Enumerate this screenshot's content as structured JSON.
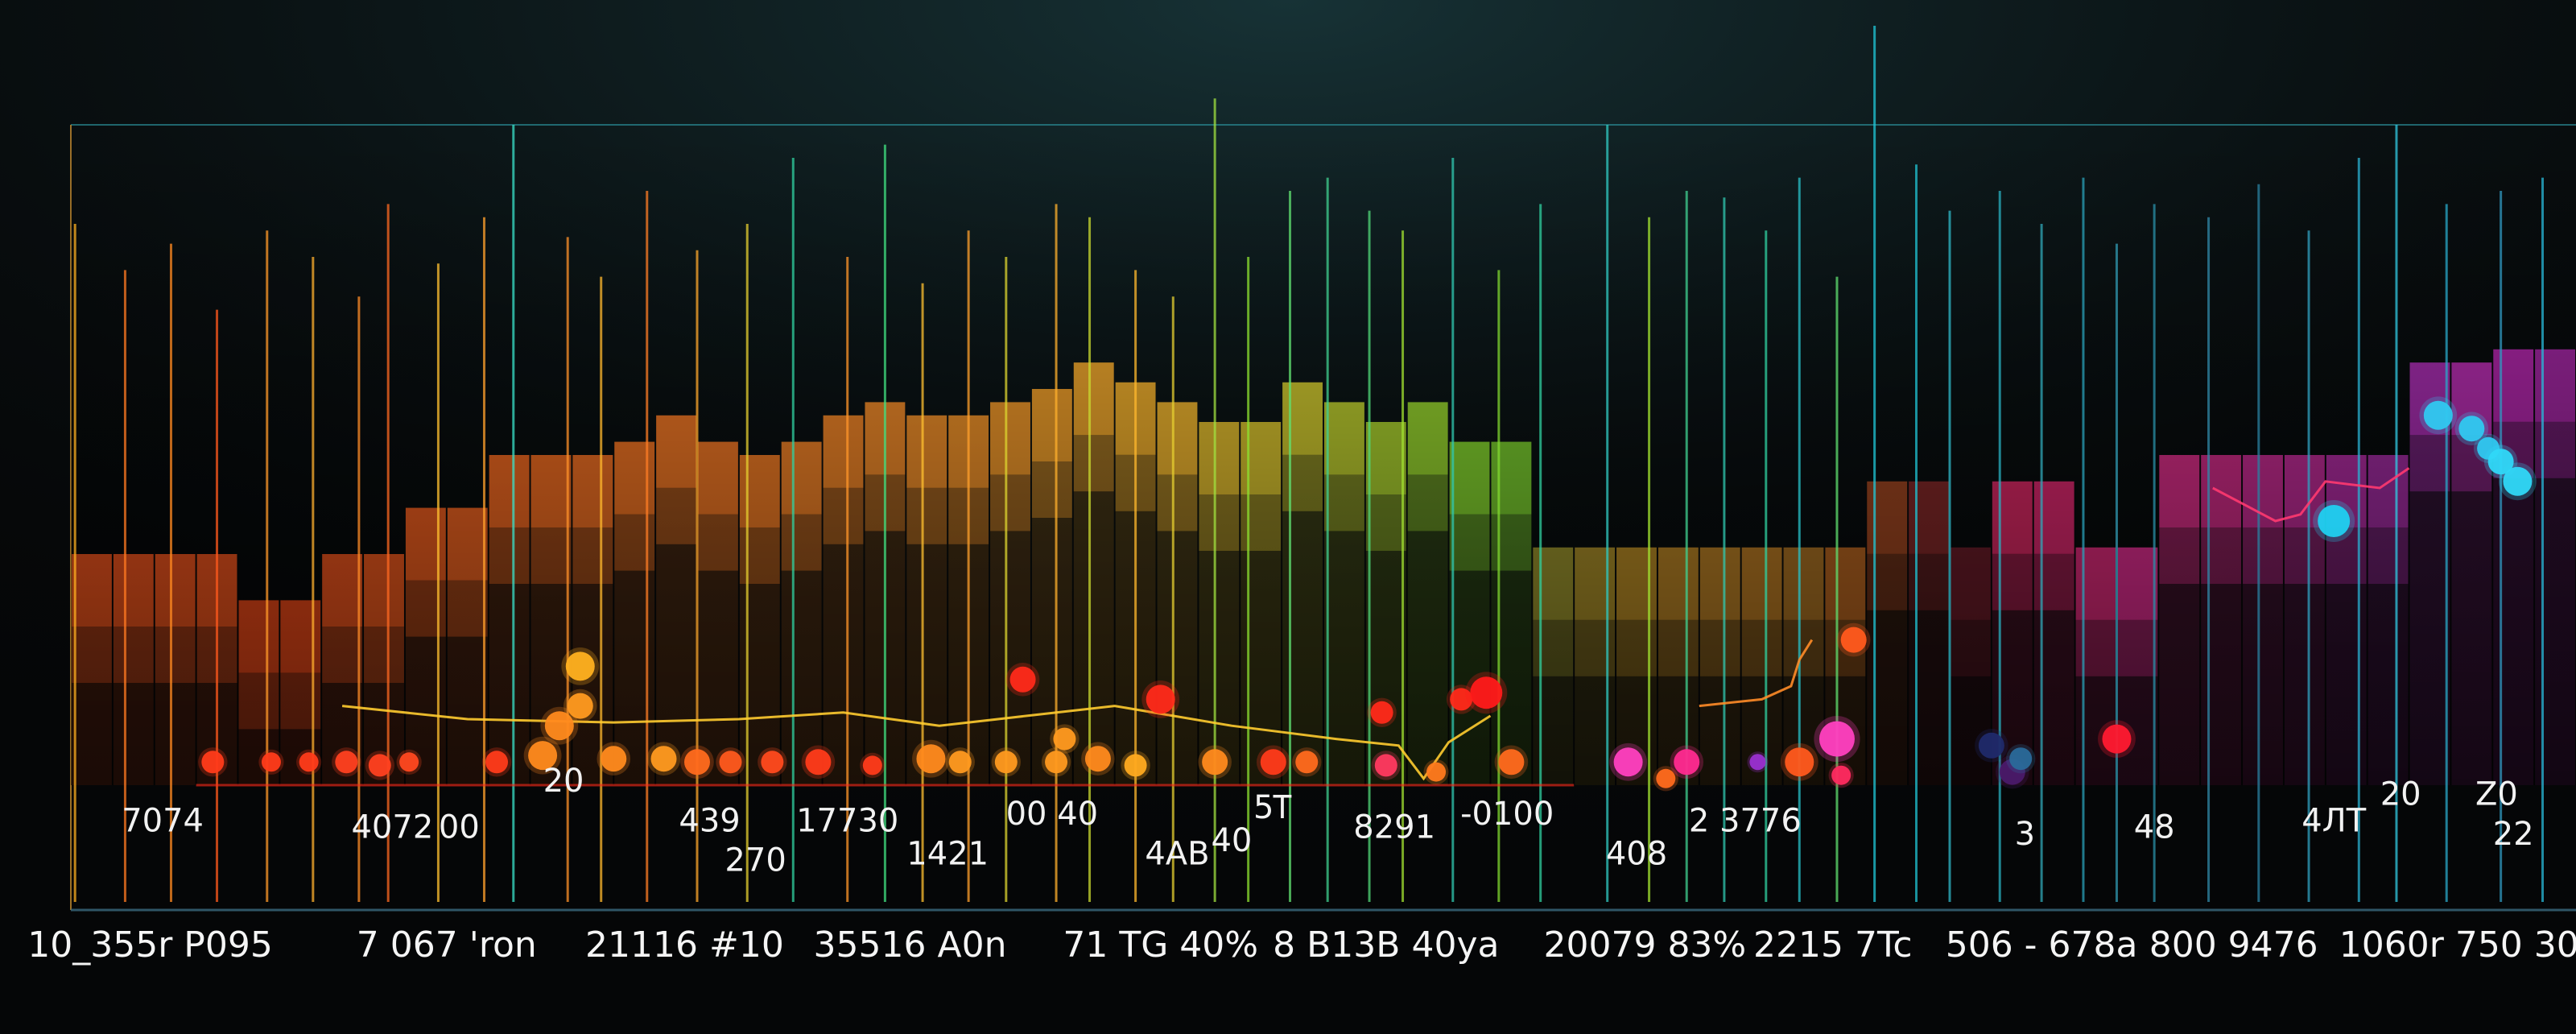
{
  "chart_data": {
    "type": "bar",
    "title": "",
    "xlabel": "",
    "ylabel": "",
    "ylim": [
      0,
      100
    ],
    "grid": true,
    "legend": "none",
    "bars": [
      {
        "h": 35,
        "color": "#ff5a1e"
      },
      {
        "h": 35,
        "color": "#ff5a1e"
      },
      {
        "h": 35,
        "color": "#ff5a1e"
      },
      {
        "h": 35,
        "color": "#ff5a1e"
      },
      {
        "h": 28,
        "color": "#ff4f1a"
      },
      {
        "h": 28,
        "color": "#ff4f1a"
      },
      {
        "h": 35,
        "color": "#ff5a1e"
      },
      {
        "h": 35,
        "color": "#ff5f1f"
      },
      {
        "h": 42,
        "color": "#ff6420"
      },
      {
        "h": 42,
        "color": "#ff6a22"
      },
      {
        "h": 50,
        "color": "#ff6e22"
      },
      {
        "h": 50,
        "color": "#ff7222"
      },
      {
        "h": 50,
        "color": "#ff7624"
      },
      {
        "h": 52,
        "color": "#ff7a24"
      },
      {
        "h": 56,
        "color": "#ff7e26"
      },
      {
        "h": 52,
        "color": "#ff7e26"
      },
      {
        "h": 50,
        "color": "#ff8226"
      },
      {
        "h": 52,
        "color": "#ff8828"
      },
      {
        "h": 56,
        "color": "#ff8c28"
      },
      {
        "h": 58,
        "color": "#ff922a"
      },
      {
        "h": 56,
        "color": "#ff962a"
      },
      {
        "h": 56,
        "color": "#ff9a2a"
      },
      {
        "h": 58,
        "color": "#ffa02c"
      },
      {
        "h": 60,
        "color": "#ffa82c"
      },
      {
        "h": 64,
        "color": "#ffb02e"
      },
      {
        "h": 61,
        "color": "#ffb82e"
      },
      {
        "h": 58,
        "color": "#ffc030"
      },
      {
        "h": 55,
        "color": "#f0c830"
      },
      {
        "h": 55,
        "color": "#e6cf30"
      },
      {
        "h": 61,
        "color": "#dcd430"
      },
      {
        "h": 58,
        "color": "#c8d830"
      },
      {
        "h": 55,
        "color": "#b4dc30"
      },
      {
        "h": 58,
        "color": "#a0e030"
      },
      {
        "h": 52,
        "color": "#8ce030"
      },
      {
        "h": 52,
        "color": "#80d830"
      },
      {
        "h": 36,
        "color": "#a8a030"
      },
      {
        "h": 36,
        "color": "#b89a2c"
      },
      {
        "h": 36,
        "color": "#c89628"
      },
      {
        "h": 36,
        "color": "#c88e28"
      },
      {
        "h": 36,
        "color": "#c88a28"
      },
      {
        "h": 36,
        "color": "#c88426"
      },
      {
        "h": 36,
        "color": "#b87a26"
      },
      {
        "h": 36,
        "color": "#c46c22"
      },
      {
        "h": 46,
        "color": "#a84a22"
      },
      {
        "h": 46,
        "color": "#8a2a2a"
      },
      {
        "h": 36,
        "color": "#701d2a"
      },
      {
        "h": 46,
        "color": "#e82a6a"
      },
      {
        "h": 46,
        "color": "#ea2a74"
      },
      {
        "h": 36,
        "color": "#ee2e84"
      },
      {
        "h": 36,
        "color": "#f0309a"
      },
      {
        "h": 50,
        "color": "#e4308e"
      },
      {
        "h": 50,
        "color": "#da2e8e"
      },
      {
        "h": 50,
        "color": "#d02e98"
      },
      {
        "h": 50,
        "color": "#c82e9e"
      },
      {
        "h": 50,
        "color": "#b82ea8"
      },
      {
        "h": 50,
        "color": "#a82ea8"
      },
      {
        "h": 64,
        "color": "#b030b8"
      },
      {
        "h": 64,
        "color": "#c030b8"
      },
      {
        "h": 66,
        "color": "#b828b0"
      },
      {
        "h": 66,
        "color": "#a828a8"
      }
    ],
    "vlines": [
      {
        "x": 0.1,
        "top": 85,
        "color": "#ffb020"
      },
      {
        "x": 1.3,
        "top": 78,
        "color": "#ff7a22"
      },
      {
        "x": 2.4,
        "top": 82,
        "color": "#ff8a22"
      },
      {
        "x": 3.5,
        "top": 72,
        "color": "#ff5a1e"
      },
      {
        "x": 4.7,
        "top": 84,
        "color": "#ff9a2a"
      },
      {
        "x": 5.8,
        "top": 80,
        "color": "#ffb02e"
      },
      {
        "x": 6.9,
        "top": 74,
        "color": "#ff8c28"
      },
      {
        "x": 7.6,
        "top": 88,
        "color": "#ff6a22"
      },
      {
        "x": 8.8,
        "top": 79,
        "color": "#ffc030"
      },
      {
        "x": 9.9,
        "top": 86,
        "color": "#ffa02c"
      },
      {
        "x": 10.6,
        "top": 100,
        "color": "#3ae0c8"
      },
      {
        "x": 11.9,
        "top": 83,
        "color": "#ff922a"
      },
      {
        "x": 12.7,
        "top": 77,
        "color": "#ffb82e"
      },
      {
        "x": 13.8,
        "top": 90,
        "color": "#ff7e26"
      },
      {
        "x": 15.0,
        "top": 81,
        "color": "#ffa82c"
      },
      {
        "x": 16.2,
        "top": 85,
        "color": "#e6cf30"
      },
      {
        "x": 17.3,
        "top": 95,
        "color": "#30d0a0"
      },
      {
        "x": 18.6,
        "top": 80,
        "color": "#ff962a"
      },
      {
        "x": 19.5,
        "top": 97,
        "color": "#40e080"
      },
      {
        "x": 20.4,
        "top": 76,
        "color": "#ffc030"
      },
      {
        "x": 21.5,
        "top": 84,
        "color": "#ffa02c"
      },
      {
        "x": 22.4,
        "top": 80,
        "color": "#dcd430"
      },
      {
        "x": 23.6,
        "top": 88,
        "color": "#ffb02e"
      },
      {
        "x": 24.4,
        "top": 86,
        "color": "#c8d830"
      },
      {
        "x": 25.5,
        "top": 78,
        "color": "#ffb82e"
      },
      {
        "x": 26.4,
        "top": 74,
        "color": "#e6cf30"
      },
      {
        "x": 27.4,
        "top": 104,
        "color": "#a0e040"
      },
      {
        "x": 28.2,
        "top": 80,
        "color": "#8ce030"
      },
      {
        "x": 29.2,
        "top": 90,
        "color": "#60e070"
      },
      {
        "x": 30.1,
        "top": 92,
        "color": "#40d090"
      },
      {
        "x": 31.1,
        "top": 87,
        "color": "#50d878"
      },
      {
        "x": 31.9,
        "top": 84,
        "color": "#a0e030"
      },
      {
        "x": 33.1,
        "top": 95,
        "color": "#30c8b0"
      },
      {
        "x": 34.2,
        "top": 78,
        "color": "#80d830"
      },
      {
        "x": 35.2,
        "top": 88,
        "color": "#30d0a0"
      },
      {
        "x": 36.8,
        "top": 100,
        "color": "#30c8c0"
      },
      {
        "x": 37.8,
        "top": 86,
        "color": "#a0e030"
      },
      {
        "x": 38.7,
        "top": 90,
        "color": "#40d090"
      },
      {
        "x": 39.6,
        "top": 89,
        "color": "#30c8b0"
      },
      {
        "x": 40.6,
        "top": 84,
        "color": "#30d0a0"
      },
      {
        "x": 41.4,
        "top": 92,
        "color": "#28c0c8"
      },
      {
        "x": 42.3,
        "top": 77,
        "color": "#60e070"
      },
      {
        "x": 43.2,
        "top": 115,
        "color": "#20c8d8"
      },
      {
        "x": 44.2,
        "top": 94,
        "color": "#20c0d0"
      },
      {
        "x": 45.0,
        "top": 87,
        "color": "#30b8c8"
      },
      {
        "x": 46.2,
        "top": 90,
        "color": "#2ab0c0"
      },
      {
        "x": 47.2,
        "top": 85,
        "color": "#30a8b8"
      },
      {
        "x": 48.2,
        "top": 92,
        "color": "#2aa0b8"
      },
      {
        "x": 49.0,
        "top": 82,
        "color": "#3098b0"
      },
      {
        "x": 49.9,
        "top": 88,
        "color": "#2a90a8"
      },
      {
        "x": 51.2,
        "top": 86,
        "color": "#3088a8"
      },
      {
        "x": 52.4,
        "top": 91,
        "color": "#2a80a0"
      },
      {
        "x": 53.6,
        "top": 84,
        "color": "#30a0c0"
      },
      {
        "x": 54.8,
        "top": 95,
        "color": "#2ab0d0"
      },
      {
        "x": 55.7,
        "top": 100,
        "color": "#30c8e0"
      },
      {
        "x": 56.9,
        "top": 88,
        "color": "#2aa8c8"
      },
      {
        "x": 58.2,
        "top": 90,
        "color": "#3098c0"
      },
      {
        "x": 59.2,
        "top": 92,
        "color": "#28b8d8"
      }
    ],
    "line_series": [
      {
        "color": "#ffcc30",
        "points": [
          [
            6.5,
            12
          ],
          [
            9.5,
            10
          ],
          [
            13.0,
            9.5
          ],
          [
            16.0,
            10
          ],
          [
            18.5,
            11
          ],
          [
            20.8,
            9
          ],
          [
            25.0,
            12
          ],
          [
            27.8,
            9
          ],
          [
            30.3,
            7
          ],
          [
            31.8,
            6
          ],
          [
            32.4,
            1
          ],
          [
            33.0,
            6.5
          ],
          [
            34.0,
            10.5
          ]
        ]
      },
      {
        "color": "#ff8c28",
        "points": [
          [
            39.0,
            12
          ],
          [
            40.5,
            13
          ],
          [
            41.2,
            15
          ],
          [
            41.4,
            19
          ],
          [
            41.7,
            22
          ]
        ]
      },
      {
        "color": "#ff3a70",
        "points": [
          [
            51.3,
            45
          ],
          [
            52.8,
            40
          ],
          [
            53.4,
            41
          ],
          [
            54.0,
            46
          ],
          [
            55.3,
            45
          ],
          [
            56.0,
            48
          ]
        ]
      }
    ],
    "dots": [
      {
        "x": 3.4,
        "y": 3.5,
        "r": 7,
        "color": "#ff3b1a"
      },
      {
        "x": 4.8,
        "y": 3.5,
        "r": 6,
        "color": "#ff3b1a"
      },
      {
        "x": 5.7,
        "y": 3.5,
        "r": 6,
        "color": "#ff3b1a"
      },
      {
        "x": 6.6,
        "y": 3.5,
        "r": 7,
        "color": "#ff4020"
      },
      {
        "x": 7.4,
        "y": 3,
        "r": 7,
        "color": "#ff4020"
      },
      {
        "x": 8.1,
        "y": 3.5,
        "r": 6,
        "color": "#ff4820"
      },
      {
        "x": 10.2,
        "y": 3.5,
        "r": 7,
        "color": "#ff3b1a"
      },
      {
        "x": 11.3,
        "y": 4.5,
        "r": 9,
        "color": "#ff8a1e"
      },
      {
        "x": 11.7,
        "y": 9,
        "r": 9,
        "color": "#ff8a1e"
      },
      {
        "x": 12.2,
        "y": 12,
        "r": 8,
        "color": "#ff9a20"
      },
      {
        "x": 12.2,
        "y": 18,
        "r": 9,
        "color": "#ffb020"
      },
      {
        "x": 13.0,
        "y": 4,
        "r": 8,
        "color": "#ff8a1e"
      },
      {
        "x": 14.2,
        "y": 4,
        "r": 8,
        "color": "#ff9a20"
      },
      {
        "x": 15.0,
        "y": 3.5,
        "r": 8,
        "color": "#ff6a1e"
      },
      {
        "x": 15.8,
        "y": 3.5,
        "r": 7,
        "color": "#ff5a1e"
      },
      {
        "x": 16.8,
        "y": 3.5,
        "r": 7,
        "color": "#ff4a1e"
      },
      {
        "x": 17.9,
        "y": 3.5,
        "r": 8,
        "color": "#ff3b1a"
      },
      {
        "x": 19.2,
        "y": 3,
        "r": 6,
        "color": "#ff3b1a"
      },
      {
        "x": 20.6,
        "y": 4,
        "r": 9,
        "color": "#ff8a1e"
      },
      {
        "x": 21.3,
        "y": 3.5,
        "r": 7,
        "color": "#ff9a20"
      },
      {
        "x": 22.4,
        "y": 3.5,
        "r": 7,
        "color": "#ff9a20"
      },
      {
        "x": 22.8,
        "y": 16,
        "r": 8,
        "color": "#ff2a1a"
      },
      {
        "x": 23.6,
        "y": 3.5,
        "r": 7,
        "color": "#ff9a20"
      },
      {
        "x": 23.8,
        "y": 7,
        "r": 7,
        "color": "#ff9a20"
      },
      {
        "x": 24.6,
        "y": 4,
        "r": 8,
        "color": "#ff8a1e"
      },
      {
        "x": 25.5,
        "y": 3,
        "r": 7,
        "color": "#ffaa20"
      },
      {
        "x": 26.1,
        "y": 13,
        "r": 9,
        "color": "#ff2a1a"
      },
      {
        "x": 27.4,
        "y": 3.5,
        "r": 8,
        "color": "#ff8a1e"
      },
      {
        "x": 28.8,
        "y": 3.5,
        "r": 8,
        "color": "#ff3b1a"
      },
      {
        "x": 29.6,
        "y": 3.5,
        "r": 7,
        "color": "#ff6a1e"
      },
      {
        "x": 31.5,
        "y": 3,
        "r": 7,
        "color": "#ff3a60"
      },
      {
        "x": 31.4,
        "y": 11,
        "r": 7,
        "color": "#ff2a1a"
      },
      {
        "x": 32.7,
        "y": 2,
        "r": 6,
        "color": "#ff7a1e"
      },
      {
        "x": 33.3,
        "y": 13,
        "r": 7,
        "color": "#ff2a1a"
      },
      {
        "x": 33.9,
        "y": 14,
        "r": 10,
        "color": "#ff1a1a"
      },
      {
        "x": 34.5,
        "y": 3.5,
        "r": 8,
        "color": "#ff6a1e"
      },
      {
        "x": 37.3,
        "y": 3.5,
        "r": 9,
        "color": "#ff40c0"
      },
      {
        "x": 38.2,
        "y": 1,
        "r": 6,
        "color": "#ff6a1e"
      },
      {
        "x": 38.7,
        "y": 3.5,
        "r": 8,
        "color": "#ff2a90"
      },
      {
        "x": 40.4,
        "y": 3.5,
        "r": 5,
        "color": "#9a30d0"
      },
      {
        "x": 41.4,
        "y": 3.5,
        "r": 9,
        "color": "#ff5a1e"
      },
      {
        "x": 42.3,
        "y": 7,
        "r": 11,
        "color": "#ff40c0"
      },
      {
        "x": 42.4,
        "y": 1.5,
        "r": 6,
        "color": "#ff2a60"
      },
      {
        "x": 42.7,
        "y": 22,
        "r": 8,
        "color": "#ff5a1e"
      },
      {
        "x": 46.0,
        "y": 6,
        "r": 8,
        "color": "#202a6a"
      },
      {
        "x": 46.5,
        "y": 2,
        "r": 8,
        "color": "#4a1a6a"
      },
      {
        "x": 46.7,
        "y": 4,
        "r": 7,
        "color": "#2a6a9a"
      },
      {
        "x": 49.0,
        "y": 7,
        "r": 9,
        "color": "#ff1a30"
      },
      {
        "x": 54.2,
        "y": 40,
        "r": 10,
        "color": "#20d0f0"
      },
      {
        "x": 56.7,
        "y": 56,
        "r": 9,
        "color": "#30c8f0"
      },
      {
        "x": 57.5,
        "y": 54,
        "r": 8,
        "color": "#30c8f0"
      },
      {
        "x": 57.9,
        "y": 51,
        "r": 7,
        "color": "#30c8f0"
      },
      {
        "x": 58.2,
        "y": 49,
        "r": 8,
        "color": "#30d8f8"
      },
      {
        "x": 58.6,
        "y": 46,
        "r": 9,
        "color": "#30d8f8"
      }
    ],
    "inner_labels": [
      {
        "text": "7074",
        "x": 2.2,
        "y": -7
      },
      {
        "text": "20",
        "x": 11.8,
        "y": -1
      },
      {
        "text": "4072",
        "x": 7.7,
        "y": -8
      },
      {
        "text": "00",
        "x": 9.3,
        "y": -8
      },
      {
        "text": "439",
        "x": 15.3,
        "y": -7
      },
      {
        "text": "17730",
        "x": 18.6,
        "y": -7
      },
      {
        "text": "270",
        "x": 16.4,
        "y": -13
      },
      {
        "text": "00 40",
        "x": 23.5,
        "y": -6
      },
      {
        "text": "1421",
        "x": 21.0,
        "y": -12
      },
      {
        "text": "5Ꭲ",
        "x": 28.8,
        "y": -5
      },
      {
        "text": "4AB",
        "x": 26.5,
        "y": -12
      },
      {
        "text": "40",
        "x": 27.8,
        "y": -10
      },
      {
        "text": "8291",
        "x": 31.7,
        "y": -8
      },
      {
        "text": "-0100",
        "x": 34.4,
        "y": -6
      },
      {
        "text": "2 3776",
        "x": 40.1,
        "y": -7
      },
      {
        "text": "408",
        "x": 37.5,
        "y": -12
      },
      {
        "text": "3",
        "x": 46.8,
        "y": -9
      },
      {
        "text": "48",
        "x": 49.9,
        "y": -8
      },
      {
        "text": "4ЛТ",
        "x": 54.2,
        "y": -7
      },
      {
        "text": "20",
        "x": 55.8,
        "y": -3
      },
      {
        "text": "Z0",
        "x": 58.1,
        "y": -3
      },
      {
        "text": "22",
        "x": 58.5,
        "y": -9
      }
    ],
    "bottom_labels": [
      {
        "text": "10_355r P095",
        "x": 1.9
      },
      {
        "text": "7 067 'ron",
        "x": 9.0
      },
      {
        "text": "21116 #10",
        "x": 14.7
      },
      {
        "text": "35516 A0n",
        "x": 20.1
      },
      {
        "text": "71 TG 40%",
        "x": 26.1
      },
      {
        "text": "8 B13B 40ya",
        "x": 31.5
      },
      {
        "text": "20079 83%",
        "x": 37.7
      },
      {
        "text": "2215 7Tc",
        "x": 42.2
      },
      {
        "text": "506 - 678a",
        "x": 47.2
      },
      {
        "text": "800 9476",
        "x": 51.8
      },
      {
        "text": "1060r 750 30",
        "x": 57.2
      }
    ]
  }
}
